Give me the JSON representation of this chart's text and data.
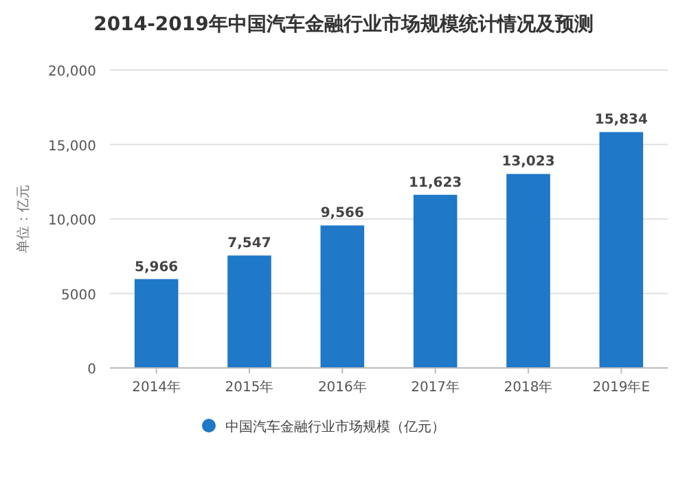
{
  "chart_data": {
    "type": "bar",
    "title": "2014-2019年中国汽车金融行业市场规模统计情况及预测",
    "ylabel": "单位：亿元",
    "categories": [
      "2014年",
      "2015年",
      "2016年",
      "2017年",
      "2018年",
      "2019年E"
    ],
    "series": [
      {
        "name": "中国汽车金融行业市场规模（亿元）",
        "color": "#1f78c8",
        "values": [
          5966,
          7547,
          9566,
          11623,
          13023,
          15834
        ],
        "value_labels": [
          "5,966",
          "7,547",
          "9,566",
          "11,623",
          "13,023",
          "15,834"
        ]
      }
    ],
    "ylim": [
      0,
      20000
    ],
    "yticks": [
      {
        "value": 0,
        "label": "0"
      },
      {
        "value": 5000,
        "label": "5000"
      },
      {
        "value": 10000,
        "label": "10,000"
      },
      {
        "value": 15000,
        "label": "15,000"
      },
      {
        "value": 20000,
        "label": "20,000"
      }
    ],
    "grid": "y",
    "legend": "bottom"
  }
}
